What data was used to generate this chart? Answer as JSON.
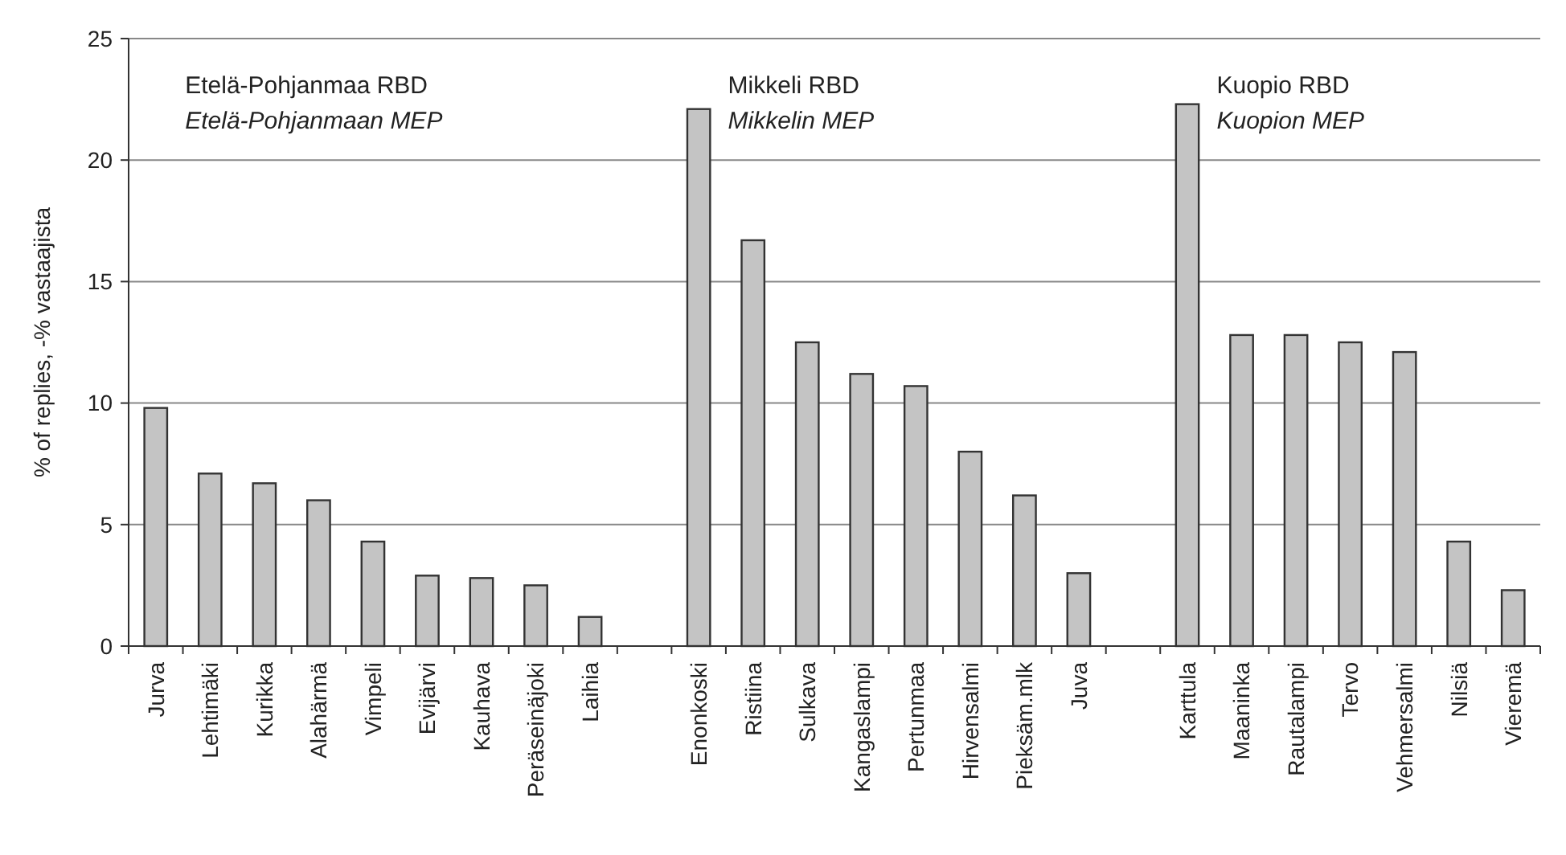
{
  "chart_data": {
    "type": "bar",
    "ylabel": "% of replies, -% vastaajista",
    "categories": [
      "Jurva",
      "Lehtimäki",
      "Kurikka",
      "Alahärmä",
      "Vimpeli",
      "Evijärvi",
      "Kauhava",
      "Peräseinäjoki",
      "Laihia",
      null,
      "Enonkoski",
      "Ristiina",
      "Sulkava",
      "Kangaslampi",
      "Pertunmaa",
      "Hirvensalmi",
      "Pieksäm.mlk",
      "Juva",
      null,
      "Karttula",
      "Maaninka",
      "Rautalampi",
      "Tervo",
      "Vehmersalmi",
      "Nilsiä",
      "Vieremä"
    ],
    "values": [
      9.8,
      7.1,
      6.7,
      6.0,
      4.3,
      2.9,
      2.8,
      2.5,
      1.2,
      null,
      22.1,
      16.7,
      12.5,
      11.2,
      10.7,
      8.0,
      6.2,
      3.0,
      null,
      22.3,
      12.8,
      12.8,
      12.5,
      12.1,
      4.3,
      2.3
    ],
    "color": "#c4c4c4",
    "ylim": [
      0,
      25
    ],
    "yticks": [
      0,
      5,
      10,
      15,
      20,
      25
    ],
    "grid": "y",
    "annotations": [
      "Etelä-Pohjanmaa RBD",
      "Etelä-Pohjanmaan MEP",
      "Mikkeli RBD",
      "Mikkelin MEP",
      "Kuopio RBD",
      "Kuopion MEP"
    ]
  }
}
